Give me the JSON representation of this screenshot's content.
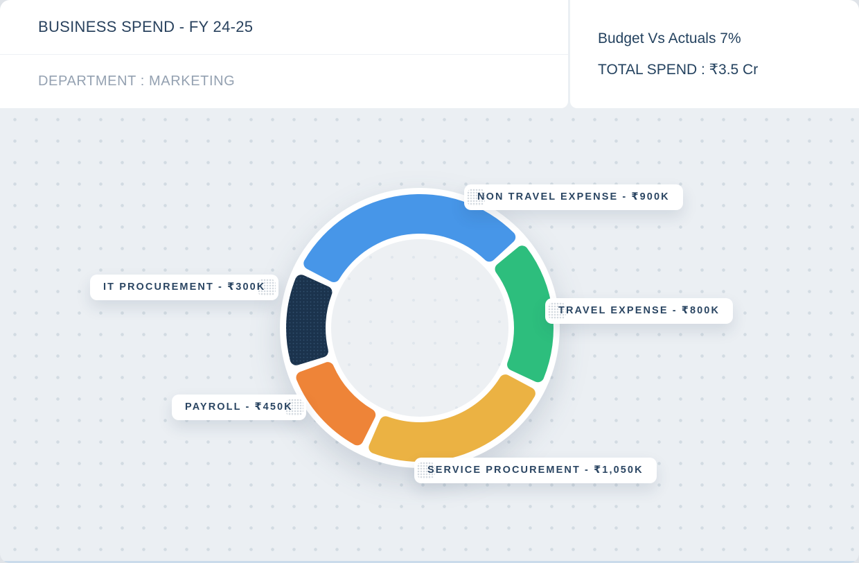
{
  "header": {
    "title": "BUSINESS SPEND - FY 24-25",
    "department_label": "DEPARTMENT : MARKETING",
    "budget_vs_actuals": "Budget Vs Actuals 7%",
    "total_spend": "TOTAL SPEND : ₹3.5 Cr"
  },
  "colors": {
    "background": "#EBEFF3",
    "background_dot": "#D2DBE2",
    "card": "#FFFFFF",
    "heading_text": "#29425E",
    "muted_text": "#94A1B1",
    "pill_text": "#2A4562",
    "donut_ring": "#FFFFFF",
    "hole_fill": "#EDF0F3",
    "hole_dot": "#E0E6EC",
    "bottom_accent": "#BFD4E8"
  },
  "chart_data": {
    "type": "pie",
    "variant": "donut",
    "title": "BUSINESS SPEND - FY 24-25",
    "department": "MARKETING",
    "fiscal_year": "FY 24-25",
    "unit": "INR thousands (₹K)",
    "total_value_k": 3500,
    "total_label": "TOTAL SPEND : ₹3.5 Cr",
    "budget_vs_actuals_pct": 7,
    "legend_position": "callout-pills-around-donut",
    "grid": false,
    "gap_deg": 3.2,
    "segments": [
      {
        "name": "Non Travel Expense",
        "label": "NON TRAVEL EXPENSE - ₹900K",
        "value": 900,
        "color": "#4796E8",
        "texture": "solid",
        "display": {
          "start_deg": -64,
          "sweep_deg": 113
        }
      },
      {
        "name": "Travel Expense",
        "label": "TRAVEL EXPENSE - ₹800K",
        "value": 800,
        "color": "#2DBE7D",
        "texture": "solid",
        "display": {
          "start_deg": 49,
          "sweep_deg": 67.5
        }
      },
      {
        "name": "Service Procurement",
        "label": "SERVICE PROCUREMENT - ₹1,050K",
        "value": 1050,
        "color": "#EBB243",
        "texture": "solid",
        "display": {
          "start_deg": 116.5,
          "sweep_deg": 88.5
        }
      },
      {
        "name": "Payroll",
        "label": "PAYROLL - ₹450K",
        "value": 450,
        "color": "#EE8438",
        "texture": "solid",
        "display": {
          "start_deg": 205,
          "sweep_deg": 46.5
        }
      },
      {
        "name": "IT Procurement",
        "label": "IT PROCUREMENT - ₹300K",
        "value": 300,
        "color": "#1B334D",
        "texture": "halftone-dots",
        "dot_color": "#33516F",
        "display": {
          "start_deg": 251.5,
          "sweep_deg": 44.5
        }
      }
    ]
  }
}
